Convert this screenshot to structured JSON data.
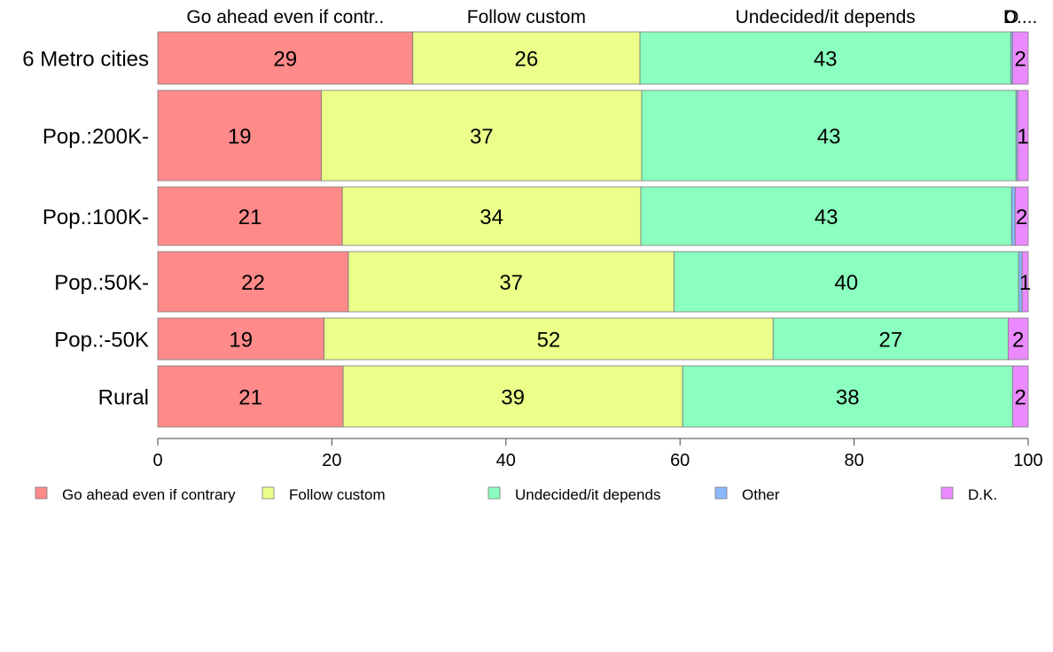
{
  "chart_data": {
    "type": "bar",
    "orientation": "horizontal",
    "stacked": true,
    "categories": [
      "6 Metro cities",
      "Pop.:200K-",
      "Pop.:100K-",
      "Pop.:50K-",
      "Pop.:-50K",
      "Rural"
    ],
    "series": [
      {
        "name": "Go ahead even if contrary",
        "header": "Go ahead even if contr..",
        "color": "#ff8a8a",
        "values": [
          29.3,
          18.8,
          21.2,
          21.9,
          19.1,
          21.3
        ],
        "labels": [
          "29",
          "19",
          "21",
          "22",
          "19",
          "21"
        ]
      },
      {
        "name": "Follow custom",
        "header": "Follow custom",
        "color": "#ebff8a",
        "values": [
          26.1,
          36.8,
          34.3,
          37.4,
          51.6,
          39.0
        ],
        "labels": [
          "26",
          "37",
          "34",
          "37",
          "52",
          "39"
        ]
      },
      {
        "name": "Undecided/it depends",
        "header": "Undecided/it depends",
        "color": "#8affbf",
        "values": [
          42.6,
          43.0,
          42.6,
          39.6,
          27.0,
          37.9
        ],
        "labels": [
          "43",
          "43",
          "43",
          "40",
          "27",
          "38"
        ]
      },
      {
        "name": "Other",
        "header": "O",
        "color": "#8ab9ff",
        "values": [
          0.2,
          0.2,
          0.4,
          0.4,
          0.0,
          0.0
        ],
        "labels": [
          "",
          "",
          "",
          "",
          "",
          ""
        ]
      },
      {
        "name": "D.K.",
        "header": "D....",
        "color": "#eb8aff",
        "values": [
          1.8,
          1.2,
          1.5,
          0.7,
          2.3,
          1.8
        ],
        "labels": [
          "2",
          "1",
          "2",
          "1",
          "2",
          "2"
        ]
      }
    ],
    "xlim": [
      0,
      100
    ],
    "xticks": [
      0,
      20,
      40,
      60,
      80,
      100
    ],
    "xlabel": "",
    "ylabel": "",
    "title": "",
    "grid": false,
    "legend": "bottom"
  }
}
